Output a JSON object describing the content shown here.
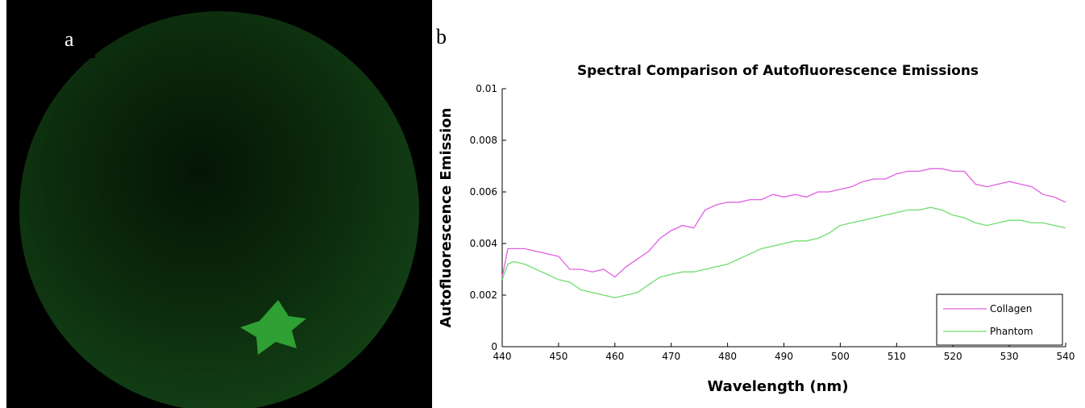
{
  "figure": {
    "panel_a_label": "a",
    "panel_b_label": "b"
  },
  "chart_data": {
    "type": "line",
    "title": "Spectral Comparison of Autofluorescence Emissions",
    "x_label": "Wavelength (nm)",
    "y_label": "Autofluorescence Emission",
    "x": [
      440,
      441,
      442,
      444,
      446,
      448,
      450,
      452,
      454,
      456,
      458,
      460,
      462,
      464,
      466,
      468,
      470,
      472,
      474,
      476,
      478,
      480,
      482,
      484,
      486,
      488,
      490,
      492,
      494,
      496,
      498,
      500,
      502,
      504,
      506,
      508,
      510,
      512,
      514,
      516,
      518,
      520,
      522,
      524,
      526,
      528,
      530,
      532,
      534,
      536,
      538,
      540
    ],
    "series": [
      {
        "name": "Collagen",
        "color": "#e060e0",
        "values": [
          0.0027,
          0.0038,
          0.0038,
          0.0038,
          0.0037,
          0.0036,
          0.0035,
          0.003,
          0.003,
          0.0029,
          0.003,
          0.0027,
          0.0031,
          0.0034,
          0.0037,
          0.0042,
          0.0045,
          0.0047,
          0.0046,
          0.0053,
          0.0055,
          0.0056,
          0.0056,
          0.0057,
          0.0057,
          0.0059,
          0.0058,
          0.0059,
          0.0058,
          0.006,
          0.006,
          0.0061,
          0.0062,
          0.0064,
          0.0065,
          0.0065,
          0.0067,
          0.0068,
          0.0068,
          0.0069,
          0.0069,
          0.0068,
          0.0068,
          0.0063,
          0.0062,
          0.0063,
          0.0064,
          0.0063,
          0.0062,
          0.0059,
          0.0058,
          0.0056
        ]
      },
      {
        "name": "Phantom",
        "color": "#70dd70",
        "values": [
          0.0026,
          0.0032,
          0.0033,
          0.0032,
          0.003,
          0.0028,
          0.0026,
          0.0025,
          0.0022,
          0.0021,
          0.002,
          0.0019,
          0.002,
          0.0021,
          0.0024,
          0.0027,
          0.0028,
          0.0029,
          0.0029,
          0.003,
          0.0031,
          0.0032,
          0.0034,
          0.0036,
          0.0038,
          0.0039,
          0.004,
          0.0041,
          0.0041,
          0.0042,
          0.0044,
          0.0047,
          0.0048,
          0.0049,
          0.005,
          0.0051,
          0.0052,
          0.0053,
          0.0053,
          0.0054,
          0.0053,
          0.0051,
          0.005,
          0.0048,
          0.0047,
          0.0048,
          0.0049,
          0.0049,
          0.0048,
          0.0048,
          0.0047,
          0.0046
        ]
      }
    ],
    "xlim": [
      440,
      540
    ],
    "xticks": [
      440,
      450,
      460,
      470,
      480,
      490,
      500,
      510,
      520,
      530,
      540
    ],
    "ylim": [
      0,
      0.01
    ],
    "yticks": [
      0,
      0.002,
      0.004,
      0.006,
      0.008,
      0.01
    ],
    "legend": "lower right"
  }
}
